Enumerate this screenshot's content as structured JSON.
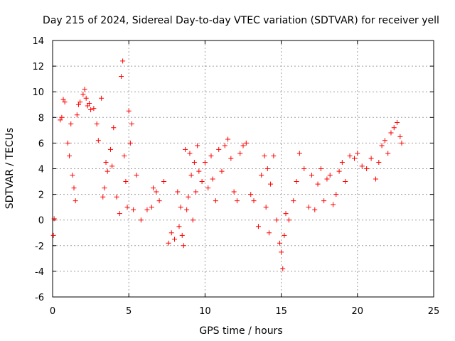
{
  "chart_data": {
    "type": "scatter",
    "title": "Day 215 of 2024, Sidereal Day-to-day VTEC variation (SDTVAR) for receiver yell",
    "xlabel": "GPS time / hours",
    "ylabel": "SDTVAR / TECUs",
    "xlim": [
      0,
      25
    ],
    "ylim": [
      -6,
      14
    ],
    "xticks": [
      0,
      5,
      10,
      15,
      20,
      25
    ],
    "yticks": [
      -6,
      -4,
      -2,
      0,
      2,
      4,
      6,
      8,
      10,
      12,
      14
    ],
    "grid": true,
    "marker": "+",
    "series": [
      {
        "name": "SDTVAR",
        "color": "#ff0000",
        "points": [
          [
            0.05,
            -1.2
          ],
          [
            0.1,
            0.1
          ],
          [
            0.5,
            7.8
          ],
          [
            0.6,
            8.0
          ],
          [
            0.7,
            9.4
          ],
          [
            0.8,
            9.2
          ],
          [
            1.0,
            6.0
          ],
          [
            1.1,
            5.0
          ],
          [
            1.2,
            7.5
          ],
          [
            1.3,
            3.5
          ],
          [
            1.4,
            2.5
          ],
          [
            1.5,
            1.5
          ],
          [
            1.6,
            8.2
          ],
          [
            1.7,
            9.0
          ],
          [
            1.8,
            9.2
          ],
          [
            2.0,
            9.8
          ],
          [
            2.1,
            10.2
          ],
          [
            2.2,
            9.5
          ],
          [
            2.3,
            8.9
          ],
          [
            2.4,
            9.1
          ],
          [
            2.5,
            8.6
          ],
          [
            2.7,
            8.7
          ],
          [
            2.9,
            7.5
          ],
          [
            3.0,
            6.2
          ],
          [
            3.2,
            9.5
          ],
          [
            3.3,
            1.8
          ],
          [
            3.4,
            2.5
          ],
          [
            3.5,
            4.5
          ],
          [
            3.6,
            3.8
          ],
          [
            3.8,
            5.5
          ],
          [
            3.9,
            4.2
          ],
          [
            4.0,
            7.2
          ],
          [
            4.2,
            1.8
          ],
          [
            4.4,
            0.5
          ],
          [
            4.5,
            11.2
          ],
          [
            4.6,
            12.4
          ],
          [
            4.7,
            5.0
          ],
          [
            4.8,
            3.0
          ],
          [
            4.9,
            1.0
          ],
          [
            5.0,
            8.5
          ],
          [
            5.1,
            6.0
          ],
          [
            5.2,
            7.5
          ],
          [
            5.3,
            0.8
          ],
          [
            5.5,
            3.5
          ],
          [
            5.8,
            0.0
          ],
          [
            6.2,
            0.8
          ],
          [
            6.5,
            1.0
          ],
          [
            6.6,
            2.5
          ],
          [
            6.8,
            2.2
          ],
          [
            7.0,
            1.5
          ],
          [
            7.3,
            3.0
          ],
          [
            7.6,
            -1.8
          ],
          [
            7.8,
            -1.0
          ],
          [
            8.0,
            -1.5
          ],
          [
            8.2,
            2.2
          ],
          [
            8.3,
            -0.5
          ],
          [
            8.4,
            1.0
          ],
          [
            8.5,
            -1.2
          ],
          [
            8.6,
            -2.0
          ],
          [
            8.7,
            5.5
          ],
          [
            8.8,
            0.8
          ],
          [
            8.9,
            1.8
          ],
          [
            9.0,
            5.2
          ],
          [
            9.1,
            3.5
          ],
          [
            9.2,
            0.0
          ],
          [
            9.3,
            4.5
          ],
          [
            9.4,
            2.2
          ],
          [
            9.5,
            5.8
          ],
          [
            9.6,
            3.8
          ],
          [
            9.8,
            3.0
          ],
          [
            10.0,
            4.5
          ],
          [
            10.2,
            2.5
          ],
          [
            10.4,
            5.0
          ],
          [
            10.5,
            3.2
          ],
          [
            10.7,
            1.5
          ],
          [
            10.9,
            5.5
          ],
          [
            11.1,
            3.8
          ],
          [
            11.3,
            5.8
          ],
          [
            11.5,
            6.3
          ],
          [
            11.7,
            4.8
          ],
          [
            11.9,
            2.2
          ],
          [
            12.1,
            1.5
          ],
          [
            12.3,
            5.2
          ],
          [
            12.5,
            5.8
          ],
          [
            12.7,
            6.0
          ],
          [
            13.0,
            2.0
          ],
          [
            13.2,
            1.5
          ],
          [
            13.5,
            -0.5
          ],
          [
            13.7,
            3.5
          ],
          [
            13.9,
            5.0
          ],
          [
            14.0,
            1.0
          ],
          [
            14.1,
            4.0
          ],
          [
            14.2,
            -1.0
          ],
          [
            14.3,
            2.8
          ],
          [
            14.5,
            5.0
          ],
          [
            14.7,
            0.0
          ],
          [
            14.9,
            -1.8
          ],
          [
            15.0,
            -2.5
          ],
          [
            15.1,
            -3.8
          ],
          [
            15.2,
            -1.2
          ],
          [
            15.3,
            0.5
          ],
          [
            15.5,
            0.0
          ],
          [
            15.8,
            1.5
          ],
          [
            16.0,
            3.0
          ],
          [
            16.2,
            5.2
          ],
          [
            16.5,
            4.0
          ],
          [
            16.8,
            1.0
          ],
          [
            17.0,
            3.5
          ],
          [
            17.2,
            0.8
          ],
          [
            17.4,
            2.8
          ],
          [
            17.6,
            4.0
          ],
          [
            17.8,
            1.5
          ],
          [
            18.0,
            3.2
          ],
          [
            18.2,
            3.5
          ],
          [
            18.4,
            1.2
          ],
          [
            18.6,
            2.0
          ],
          [
            18.8,
            3.8
          ],
          [
            19.0,
            4.5
          ],
          [
            19.2,
            3.0
          ],
          [
            19.5,
            5.0
          ],
          [
            19.8,
            4.8
          ],
          [
            20.0,
            5.2
          ],
          [
            20.3,
            4.2
          ],
          [
            20.6,
            4.0
          ],
          [
            20.9,
            4.8
          ],
          [
            21.2,
            3.2
          ],
          [
            21.4,
            4.5
          ],
          [
            21.6,
            5.8
          ],
          [
            21.8,
            6.2
          ],
          [
            22.0,
            5.2
          ],
          [
            22.2,
            6.8
          ],
          [
            22.4,
            7.2
          ],
          [
            22.6,
            7.6
          ],
          [
            22.8,
            6.5
          ],
          [
            22.9,
            6.0
          ]
        ]
      }
    ]
  }
}
